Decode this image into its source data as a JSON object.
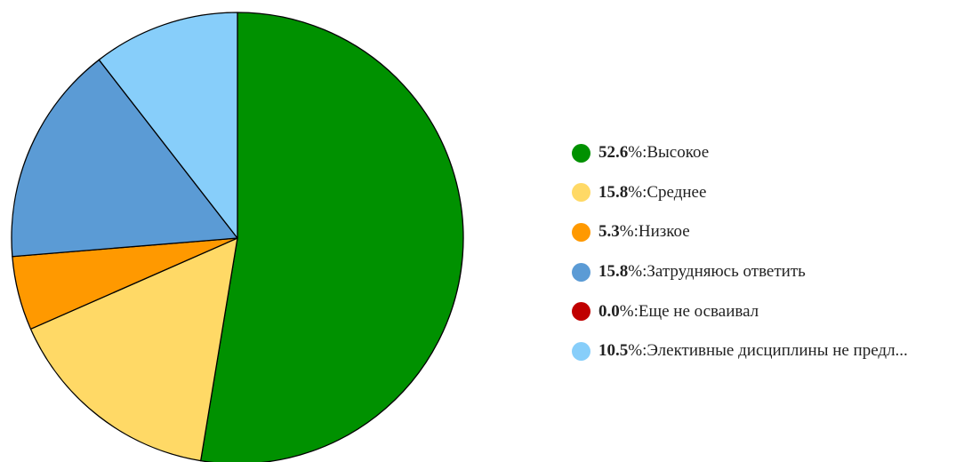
{
  "chart_data": {
    "type": "pie",
    "title": "",
    "slices": [
      {
        "label": "Высокое",
        "percent_label": "52.6",
        "value": 52.6,
        "color": "#009100"
      },
      {
        "label": "Среднее",
        "percent_label": "15.8",
        "value": 15.8,
        "color": "#FFD966"
      },
      {
        "label": "Низкое",
        "percent_label": "5.3",
        "value": 5.3,
        "color": "#FF9900"
      },
      {
        "label": "Затрудняюсь ответить",
        "percent_label": "15.8",
        "value": 15.8,
        "color": "#5B9BD5"
      },
      {
        "label": "Еще не осваивал",
        "percent_label": "0.0",
        "value": 0.0,
        "color": "#C00000"
      },
      {
        "label": "Элективные дисциплины не предл...",
        "percent_label": "10.5",
        "value": 10.5,
        "color": "#87CEFA"
      }
    ],
    "legend_position": "right",
    "start_angle": "top",
    "direction": "clockwise",
    "percent_suffix": "%",
    "separator": ": "
  }
}
